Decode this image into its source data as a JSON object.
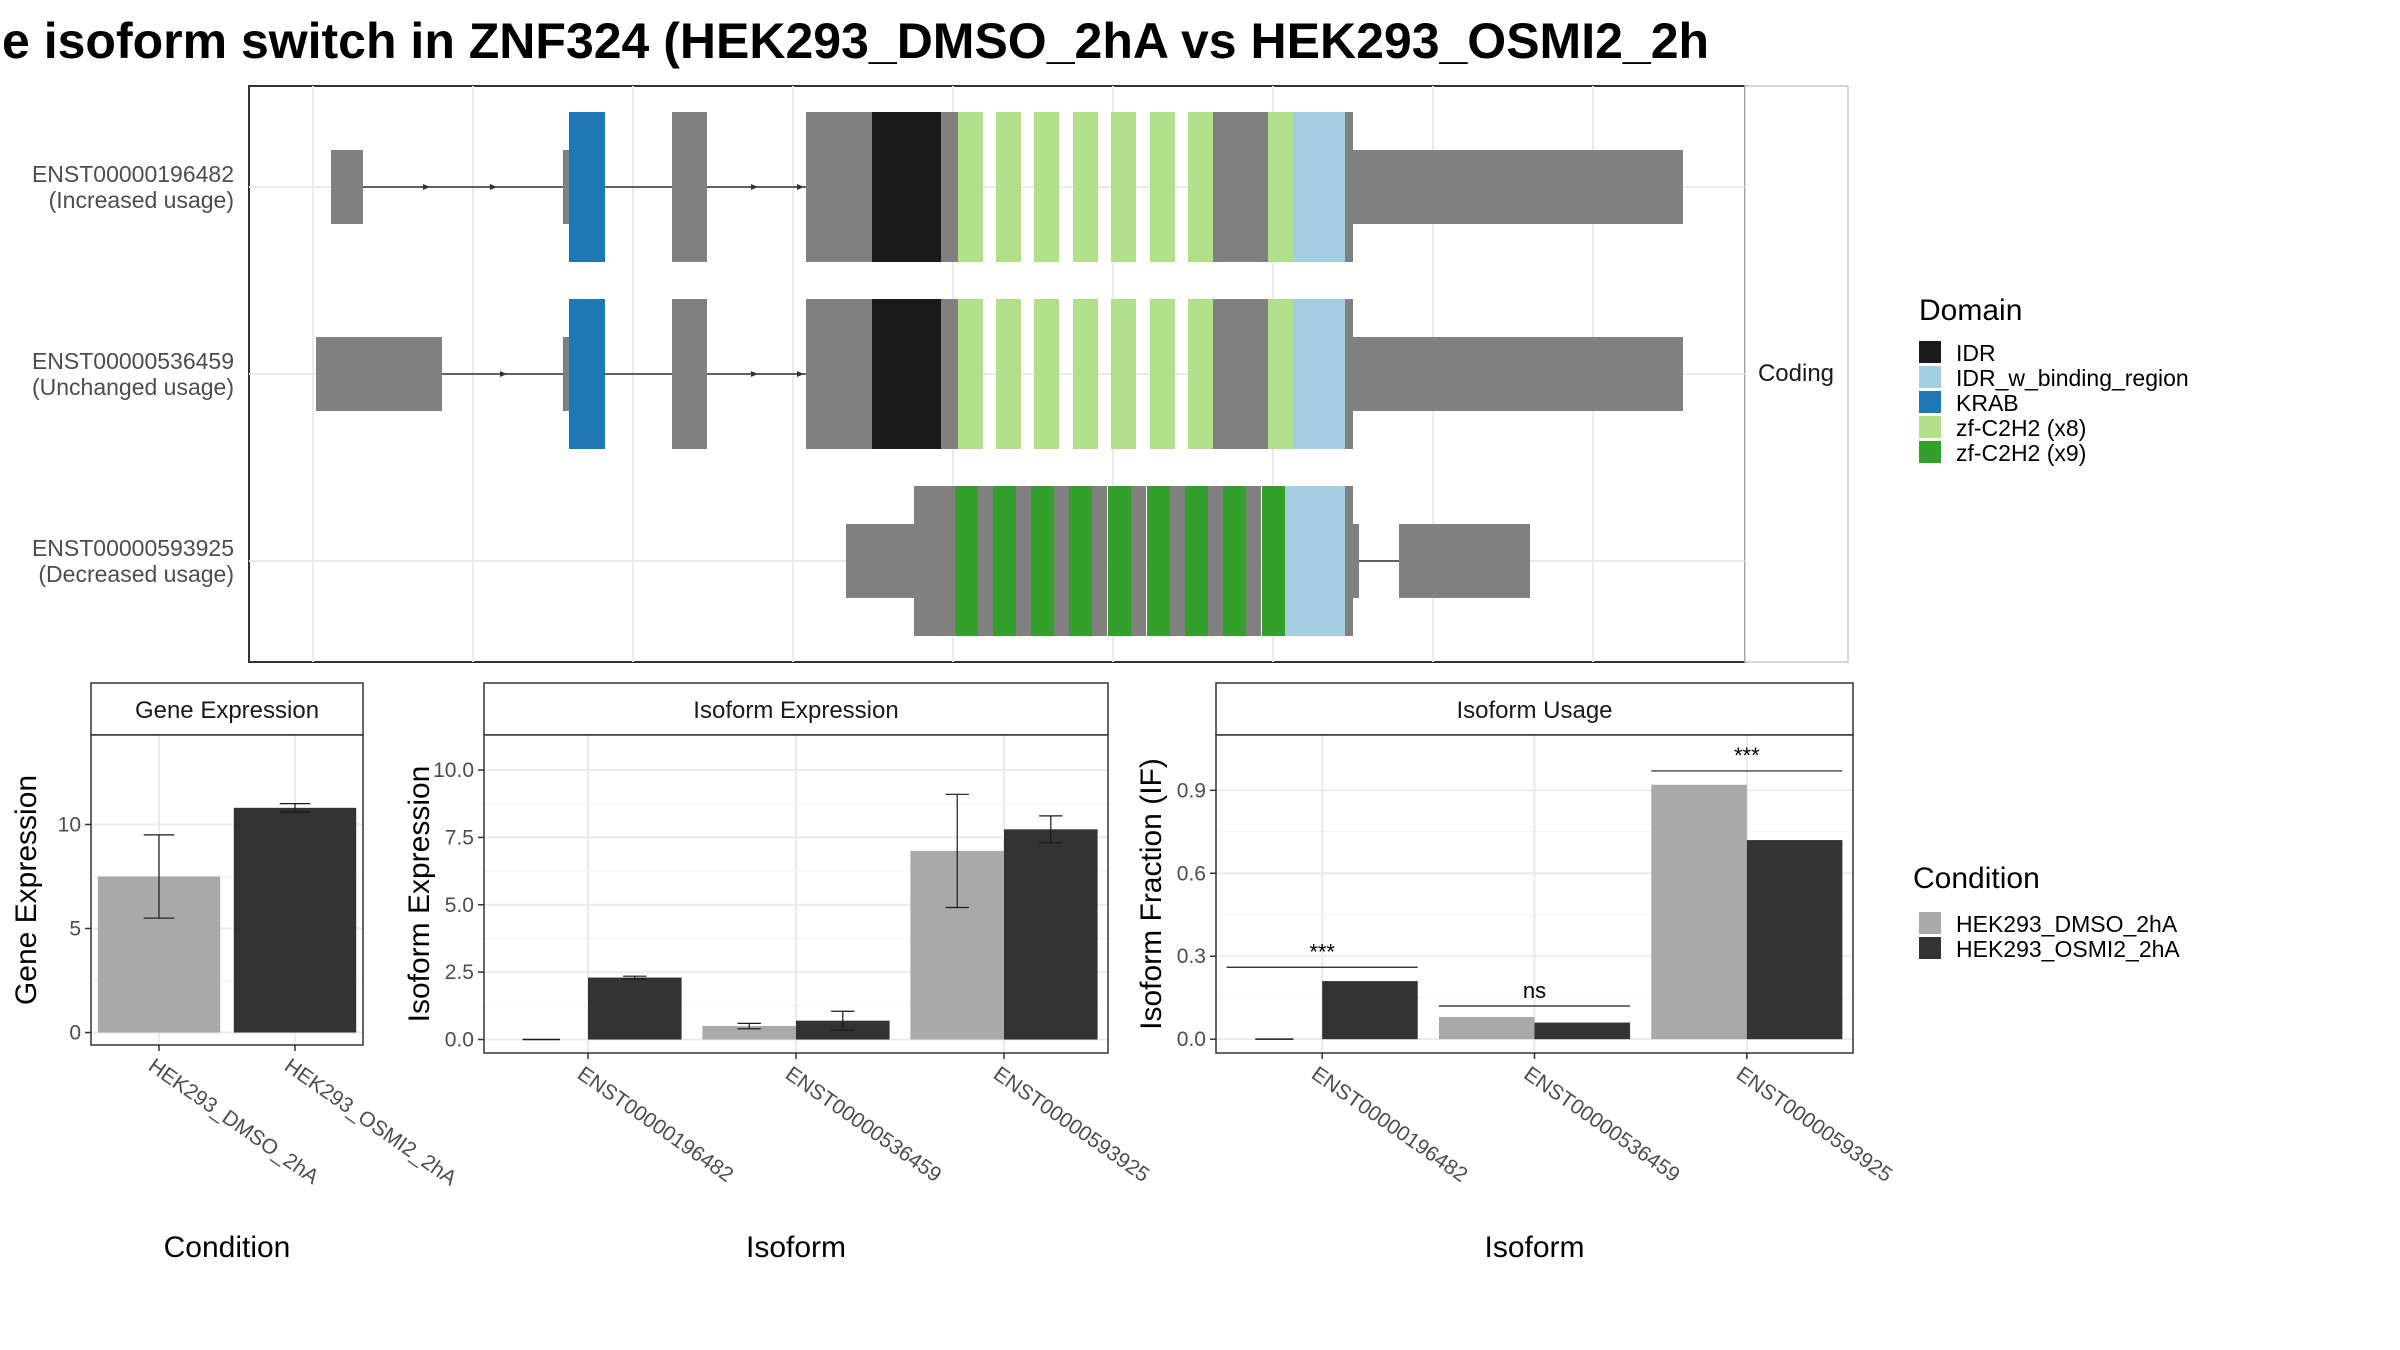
{
  "title": "e isoform switch in ZNF324 (HEK293_DMSO_2hA vs HEK293_OSMI2_2h",
  "colors": {
    "IDR": "#1a1a1a",
    "IDR_w_binding_region": "#a6cee3",
    "KRAB": "#1f78b4",
    "zf_C2H2_x8": "#b2df8a",
    "zf_C2H2_x9": "#33a02c",
    "exon": "#808080",
    "dmso": "#a9a9a9",
    "osmi2": "#333333"
  },
  "structure_panel": {
    "facet_label": "Coding",
    "transcripts": [
      {
        "id": "ENST00000196482",
        "usage": "(Increased usage)"
      },
      {
        "id": "ENST00000536459",
        "usage": "(Unchanged usage)"
      },
      {
        "id": "ENST00000593925",
        "usage": "(Decreased usage)"
      }
    ]
  },
  "domain_legend": {
    "title": "Domain",
    "items": [
      {
        "label": "IDR",
        "color": "#1a1a1a"
      },
      {
        "label": "IDR_w_binding_region",
        "color": "#a6cee3"
      },
      {
        "label": "KRAB",
        "color": "#1f78b4"
      },
      {
        "label": "zf-C2H2 (x8)",
        "color": "#b2df8a"
      },
      {
        "label": "zf-C2H2 (x9)",
        "color": "#33a02c"
      }
    ]
  },
  "condition_legend": {
    "title": "Condition",
    "items": [
      {
        "label": "HEK293_DMSO_2hA",
        "color": "#a9a9a9"
      },
      {
        "label": "HEK293_OSMI2_2hA",
        "color": "#333333"
      }
    ]
  },
  "chart_data": [
    {
      "type": "bar",
      "strip": "Gene Expression",
      "xlabel": "Condition",
      "ylabel": "Gene Expression",
      "categories": [
        "HEK293_DMSO_2hA",
        "HEK293_OSMI2_2hA"
      ],
      "values": [
        7.5,
        10.8
      ],
      "errors": [
        [
          5.5,
          9.5
        ],
        [
          10.6,
          11.0
        ]
      ],
      "yticks": [
        0,
        5,
        10
      ],
      "ylim": [
        -0.6,
        14.3
      ]
    },
    {
      "type": "bar",
      "strip": "Isoform Expression",
      "xlabel": "Isoform",
      "ylabel": "Isoform Expression",
      "categories": [
        "ENST00000196482",
        "ENST00000536459",
        "ENST00000593925"
      ],
      "series": [
        {
          "name": "HEK293_DMSO_2hA",
          "values": [
            0.0,
            0.5,
            7.0
          ],
          "errors": [
            [
              0.0,
              0.0
            ],
            [
              0.4,
              0.6
            ],
            [
              4.9,
              9.1
            ]
          ]
        },
        {
          "name": "HEK293_OSMI2_2hA",
          "values": [
            2.3,
            0.7,
            7.8
          ],
          "errors": [
            [
              2.25,
              2.35
            ],
            [
              0.35,
              1.05
            ],
            [
              7.3,
              8.3
            ]
          ]
        }
      ],
      "yticks": [
        "0.0",
        "2.5",
        "5.0",
        "7.5",
        "10.0"
      ],
      "ylim": [
        -0.5,
        11.3
      ]
    },
    {
      "type": "bar",
      "strip": "Isoform Usage",
      "xlabel": "Isoform",
      "ylabel": "Isoform Fraction (IF)",
      "categories": [
        "ENST00000196482",
        "ENST00000536459",
        "ENST00000593925"
      ],
      "series": [
        {
          "name": "HEK293_DMSO_2hA",
          "values": [
            0.0,
            0.08,
            0.92
          ]
        },
        {
          "name": "HEK293_OSMI2_2hA",
          "values": [
            0.21,
            0.06,
            0.72
          ]
        }
      ],
      "significance": [
        {
          "category": "ENST00000196482",
          "label": "***",
          "y": 0.26
        },
        {
          "category": "ENST00000536459",
          "label": "ns",
          "y": 0.12
        },
        {
          "category": "ENST00000593925",
          "label": "***",
          "y": 0.97
        }
      ],
      "yticks": [
        "0.0",
        "0.3",
        "0.6",
        "0.9"
      ],
      "ylim": [
        -0.05,
        1.1
      ]
    }
  ]
}
